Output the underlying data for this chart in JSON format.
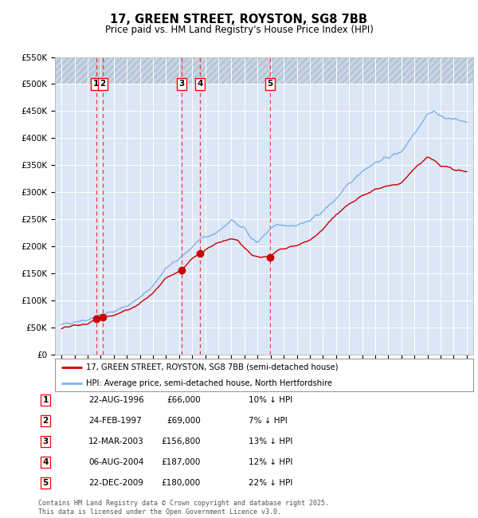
{
  "title": "17, GREEN STREET, ROYSTON, SG8 7BB",
  "subtitle": "Price paid vs. HM Land Registry's House Price Index (HPI)",
  "legend_red": "17, GREEN STREET, ROYSTON, SG8 7BB (semi-detached house)",
  "legend_blue": "HPI: Average price, semi-detached house, North Hertfordshire",
  "footer": "Contains HM Land Registry data © Crown copyright and database right 2025.\nThis data is licensed under the Open Government Licence v3.0.",
  "transactions": [
    {
      "num": 1,
      "date": "22-AUG-1996",
      "price": 66000,
      "hpi_diff": "10% ↓ HPI",
      "x": 1996.64
    },
    {
      "num": 2,
      "date": "24-FEB-1997",
      "price": 69000,
      "hpi_diff": "7% ↓ HPI",
      "x": 1997.15
    },
    {
      "num": 3,
      "date": "12-MAR-2003",
      "price": 156800,
      "hpi_diff": "13% ↓ HPI",
      "x": 2003.19
    },
    {
      "num": 4,
      "date": "06-AUG-2004",
      "price": 187000,
      "hpi_diff": "12% ↓ HPI",
      "x": 2004.6
    },
    {
      "num": 5,
      "date": "22-DEC-2009",
      "price": 180000,
      "hpi_diff": "22% ↓ HPI",
      "x": 2009.97
    }
  ],
  "ylim": [
    0,
    550000
  ],
  "xlim": [
    1993.5,
    2025.5
  ],
  "bg_color": "#dce6f5",
  "grid_color": "#ffffff",
  "red_color": "#cc0000",
  "blue_color": "#7fb3e8",
  "hpi_points": [
    [
      1994.0,
      55000
    ],
    [
      1995.0,
      62000
    ],
    [
      1996.0,
      65000
    ],
    [
      1996.64,
      73000
    ],
    [
      1997.15,
      74000
    ],
    [
      1998.0,
      80000
    ],
    [
      1999.0,
      91000
    ],
    [
      2000.0,
      105000
    ],
    [
      2001.0,
      128000
    ],
    [
      2002.0,
      160000
    ],
    [
      2003.19,
      180000
    ],
    [
      2004.0,
      200000
    ],
    [
      2004.6,
      213000
    ],
    [
      2005.0,
      215000
    ],
    [
      2006.0,
      228000
    ],
    [
      2007.0,
      248000
    ],
    [
      2008.0,
      235000
    ],
    [
      2008.5,
      215000
    ],
    [
      2009.0,
      208000
    ],
    [
      2009.97,
      231000
    ],
    [
      2010.5,
      240000
    ],
    [
      2011.0,
      238000
    ],
    [
      2012.0,
      240000
    ],
    [
      2013.0,
      247000
    ],
    [
      2014.0,
      265000
    ],
    [
      2015.0,
      288000
    ],
    [
      2016.0,
      315000
    ],
    [
      2017.0,
      340000
    ],
    [
      2018.0,
      355000
    ],
    [
      2019.0,
      365000
    ],
    [
      2020.0,
      375000
    ],
    [
      2021.0,
      410000
    ],
    [
      2022.0,
      445000
    ],
    [
      2022.5,
      450000
    ],
    [
      2023.0,
      440000
    ],
    [
      2024.0,
      435000
    ],
    [
      2025.0,
      430000
    ]
  ],
  "red_points": [
    [
      1994.0,
      48000
    ],
    [
      1995.0,
      54000
    ],
    [
      1996.0,
      57000
    ],
    [
      1996.64,
      66000
    ],
    [
      1997.15,
      69000
    ],
    [
      1998.0,
      73000
    ],
    [
      1999.0,
      83000
    ],
    [
      2000.0,
      95000
    ],
    [
      2001.0,
      115000
    ],
    [
      2002.0,
      142000
    ],
    [
      2003.19,
      156800
    ],
    [
      2004.0,
      178000
    ],
    [
      2004.6,
      187000
    ],
    [
      2005.0,
      195000
    ],
    [
      2006.0,
      208000
    ],
    [
      2007.0,
      215000
    ],
    [
      2007.5,
      210000
    ],
    [
      2008.0,
      198000
    ],
    [
      2008.5,
      185000
    ],
    [
      2009.0,
      180000
    ],
    [
      2009.97,
      180000
    ],
    [
      2010.5,
      192000
    ],
    [
      2011.0,
      196000
    ],
    [
      2012.0,
      202000
    ],
    [
      2013.0,
      212000
    ],
    [
      2014.0,
      232000
    ],
    [
      2015.0,
      258000
    ],
    [
      2016.0,
      278000
    ],
    [
      2017.0,
      295000
    ],
    [
      2018.0,
      305000
    ],
    [
      2019.0,
      312000
    ],
    [
      2020.0,
      318000
    ],
    [
      2021.0,
      345000
    ],
    [
      2022.0,
      365000
    ],
    [
      2022.5,
      360000
    ],
    [
      2023.0,
      350000
    ],
    [
      2024.0,
      342000
    ],
    [
      2025.0,
      338000
    ]
  ]
}
